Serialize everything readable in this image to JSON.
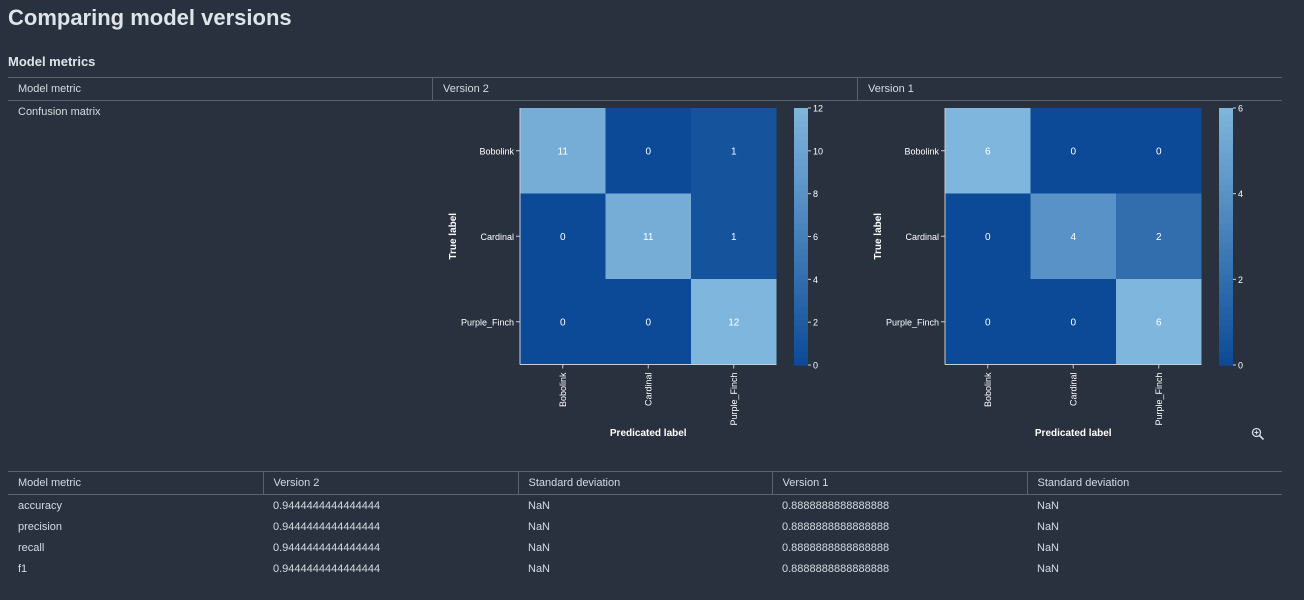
{
  "page": {
    "title": "Comparing model versions",
    "section_title": "Model metrics"
  },
  "metrics_header": {
    "col_metric": "Model metric",
    "col_v2": "Version 2",
    "col_v1": "Version 1"
  },
  "confusion_row_label": "Confusion matrix",
  "colors": {
    "background": "#29313e",
    "divider": "#59626f",
    "text": "#d5dbe3",
    "scale_low": "#0c4a97",
    "scale_high": "#7fb6dd"
  },
  "icons": {
    "zoom": "zoom-in-icon"
  },
  "chart_data": [
    {
      "type": "heatmap",
      "title": "Version 2",
      "xlabel": "Predicated label",
      "ylabel": "True label",
      "x_categories": [
        "Bobolink",
        "Cardinal",
        "Purple_Finch"
      ],
      "y_categories": [
        "Bobolink",
        "Cardinal",
        "Purple_Finch"
      ],
      "values": [
        [
          11,
          0,
          1
        ],
        [
          0,
          11,
          1
        ],
        [
          0,
          0,
          12
        ]
      ],
      "colorbar_range": [
        0,
        12
      ],
      "colorbar_ticks": [
        "0",
        "2",
        "4",
        "6",
        "8",
        "10",
        "12"
      ]
    },
    {
      "type": "heatmap",
      "title": "Version 1",
      "xlabel": "Predicated label",
      "ylabel": "True label",
      "x_categories": [
        "Bobolink",
        "Cardinal",
        "Purple_Finch"
      ],
      "y_categories": [
        "Bobolink",
        "Cardinal",
        "Purple_Finch"
      ],
      "values": [
        [
          6,
          0,
          0
        ],
        [
          0,
          4,
          2
        ],
        [
          0,
          0,
          6
        ]
      ],
      "colorbar_range": [
        0,
        6
      ],
      "colorbar_ticks": [
        "0",
        "2",
        "4",
        "6"
      ]
    }
  ],
  "metrics_table": {
    "headers": [
      "Model metric",
      "Version 2",
      "Standard deviation",
      "Version 1",
      "Standard deviation"
    ],
    "rows": [
      [
        "accuracy",
        "0.9444444444444444",
        "NaN",
        "0.8888888888888888",
        "NaN"
      ],
      [
        "precision",
        "0.9444444444444444",
        "NaN",
        "0.8888888888888888",
        "NaN"
      ],
      [
        "recall",
        "0.9444444444444444",
        "NaN",
        "0.8888888888888888",
        "NaN"
      ],
      [
        "f1",
        "0.9444444444444444",
        "NaN",
        "0.8888888888888888",
        "NaN"
      ]
    ]
  }
}
